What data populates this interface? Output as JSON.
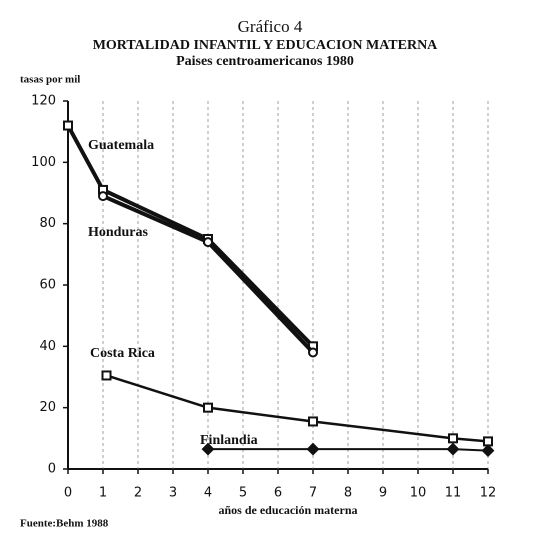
{
  "chart_data": {
    "type": "line",
    "title": "Gráfico 4",
    "subtitle": "MORTALIDAD INFANTIL Y EDUCACION MATERNA",
    "subtitle2": "Paises centroamericanos 1980",
    "y_label": "tasas por mil",
    "x_label": "años de educación materna",
    "source": "Fuente:Behm 1988",
    "xlim": [
      0,
      12
    ],
    "xticks": [
      0,
      1,
      2,
      3,
      4,
      5,
      6,
      7,
      8,
      9,
      10,
      11,
      12
    ],
    "ylim": [
      0,
      120
    ],
    "yticks": [
      0,
      20,
      40,
      60,
      80,
      100,
      120
    ],
    "series": [
      {
        "name": "Guatemala",
        "color": "#111111",
        "marker": "square",
        "x": [
          0,
          1,
          4,
          7
        ],
        "values": [
          112,
          91,
          75,
          40
        ]
      },
      {
        "name": "Honduras",
        "color": "#111111",
        "marker": "circle",
        "x": [
          1,
          4,
          7
        ],
        "values": [
          89,
          74,
          38
        ]
      },
      {
        "name": "Costa Rica",
        "color": "#111111",
        "marker": "square",
        "x": [
          1.1,
          4,
          7,
          11,
          12
        ],
        "values": [
          30.5,
          20,
          15.5,
          10,
          9
        ]
      },
      {
        "name": "Finlandia",
        "color": "#111111",
        "marker": "diamond",
        "x": [
          4,
          7,
          11,
          12
        ],
        "values": [
          6.5,
          6.5,
          6.5,
          6
        ]
      }
    ]
  }
}
